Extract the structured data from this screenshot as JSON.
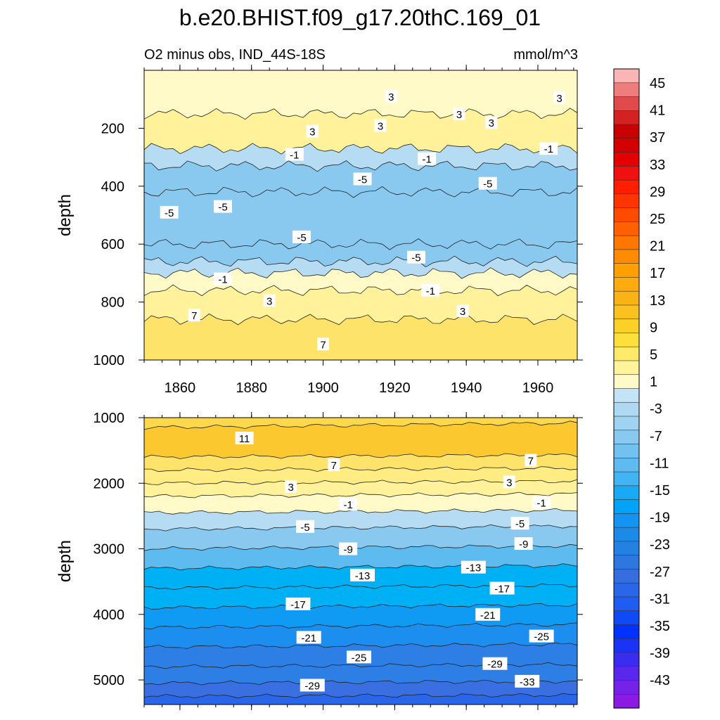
{
  "figure": {
    "title": "b.e20.BHIST.f09_g17.20thC.169_01",
    "subtitle_left": "O2 minus obs, IND_44S-18S",
    "subtitle_right": "mmol/m^3"
  },
  "chart_data": [
    {
      "type": "heatmap",
      "panel": "upper",
      "title": "O2 minus obs, IND_44S-18S",
      "units": "mmol/m^3",
      "xlabel": "",
      "ylabel": "depth",
      "xlim": [
        1850,
        1971
      ],
      "ylim": [
        1000,
        0
      ],
      "xticks": [
        1860,
        1880,
        1900,
        1920,
        1940,
        1960
      ],
      "yticks": [
        200,
        400,
        600,
        800,
        1000
      ],
      "bands": [
        {
          "top": 0,
          "bottom": 150,
          "value": 2
        },
        {
          "top": 150,
          "bottom": 270,
          "value": 3
        },
        {
          "top": 270,
          "bottom": 330,
          "value": -2
        },
        {
          "top": 330,
          "bottom": 420,
          "value": -4
        },
        {
          "top": 420,
          "bottom": 600,
          "value": -5
        },
        {
          "top": 600,
          "bottom": 660,
          "value": -4
        },
        {
          "top": 660,
          "bottom": 700,
          "value": -2
        },
        {
          "top": 700,
          "bottom": 760,
          "value": 1
        },
        {
          "top": 760,
          "bottom": 860,
          "value": 4
        },
        {
          "top": 860,
          "bottom": 1000,
          "value": 8
        }
      ],
      "contour_labels": [
        {
          "text": "3",
          "x": 1919,
          "y": 90
        },
        {
          "text": "3",
          "x": 1938,
          "y": 150
        },
        {
          "text": "3",
          "x": 1966,
          "y": 95
        },
        {
          "text": "3",
          "x": 1947,
          "y": 180
        },
        {
          "text": "3",
          "x": 1916,
          "y": 190
        },
        {
          "text": "3",
          "x": 1897,
          "y": 210
        },
        {
          "text": "-1",
          "x": 1892,
          "y": 290
        },
        {
          "text": "-1",
          "x": 1929,
          "y": 305
        },
        {
          "text": "-1",
          "x": 1963,
          "y": 270
        },
        {
          "text": "-5",
          "x": 1911,
          "y": 375
        },
        {
          "text": "-5",
          "x": 1946,
          "y": 390
        },
        {
          "text": "-5",
          "x": 1857,
          "y": 490
        },
        {
          "text": "-5",
          "x": 1872,
          "y": 470
        },
        {
          "text": "-5",
          "x": 1894,
          "y": 575
        },
        {
          "text": "-5",
          "x": 1926,
          "y": 645
        },
        {
          "text": "-1",
          "x": 1872,
          "y": 720
        },
        {
          "text": "-1",
          "x": 1930,
          "y": 760
        },
        {
          "text": "3",
          "x": 1885,
          "y": 795
        },
        {
          "text": "3",
          "x": 1939,
          "y": 830
        },
        {
          "text": "7",
          "x": 1864,
          "y": 845
        },
        {
          "text": "7",
          "x": 1900,
          "y": 945
        }
      ]
    },
    {
      "type": "heatmap",
      "panel": "lower",
      "xlabel": "",
      "ylabel": "depth",
      "xlim": [
        1850,
        1971
      ],
      "ylim": [
        5375,
        1000
      ],
      "yticks": [
        1000,
        2000,
        3000,
        4000,
        5000
      ],
      "bands": [
        {
          "top": 1000,
          "bottom": 1150,
          "value": 9
        },
        {
          "top": 1150,
          "bottom": 1600,
          "value": 11
        },
        {
          "top": 1600,
          "bottom": 1800,
          "value": 8
        },
        {
          "top": 1800,
          "bottom": 2000,
          "value": 5
        },
        {
          "top": 2000,
          "bottom": 2200,
          "value": 3
        },
        {
          "top": 2200,
          "bottom": 2450,
          "value": 1
        },
        {
          "top": 2450,
          "bottom": 2700,
          "value": -3
        },
        {
          "top": 2700,
          "bottom": 3000,
          "value": -6
        },
        {
          "top": 3000,
          "bottom": 3300,
          "value": -9
        },
        {
          "top": 3300,
          "bottom": 3600,
          "value": -12
        },
        {
          "top": 3600,
          "bottom": 3900,
          "value": -15
        },
        {
          "top": 3900,
          "bottom": 4200,
          "value": -18
        },
        {
          "top": 4200,
          "bottom": 4500,
          "value": -21
        },
        {
          "top": 4500,
          "bottom": 4800,
          "value": -24
        },
        {
          "top": 4800,
          "bottom": 5050,
          "value": -27
        },
        {
          "top": 5050,
          "bottom": 5250,
          "value": -30
        },
        {
          "top": 5250,
          "bottom": 5375,
          "value": -34
        }
      ],
      "contour_labels": [
        {
          "text": "11",
          "x": 1878,
          "y": 1310
        },
        {
          "text": "7",
          "x": 1903,
          "y": 1720
        },
        {
          "text": "7",
          "x": 1958,
          "y": 1650
        },
        {
          "text": "3",
          "x": 1891,
          "y": 2050
        },
        {
          "text": "3",
          "x": 1952,
          "y": 1980
        },
        {
          "text": "-1",
          "x": 1907,
          "y": 2320
        },
        {
          "text": "-1",
          "x": 1961,
          "y": 2290
        },
        {
          "text": "-5",
          "x": 1895,
          "y": 2660
        },
        {
          "text": "-5",
          "x": 1955,
          "y": 2610
        },
        {
          "text": "-9",
          "x": 1907,
          "y": 3000
        },
        {
          "text": "-9",
          "x": 1956,
          "y": 2920
        },
        {
          "text": "-13",
          "x": 1911,
          "y": 3400
        },
        {
          "text": "-13",
          "x": 1942,
          "y": 3280
        },
        {
          "text": "-17",
          "x": 1893,
          "y": 3840
        },
        {
          "text": "-17",
          "x": 1950,
          "y": 3600
        },
        {
          "text": "-21",
          "x": 1896,
          "y": 4350
        },
        {
          "text": "-21",
          "x": 1946,
          "y": 4000
        },
        {
          "text": "-25",
          "x": 1910,
          "y": 4650
        },
        {
          "text": "-25",
          "x": 1961,
          "y": 4330
        },
        {
          "text": "-29",
          "x": 1897,
          "y": 5080
        },
        {
          "text": "-29",
          "x": 1948,
          "y": 4750
        },
        {
          "text": "-33",
          "x": 1957,
          "y": 5020
        }
      ]
    }
  ],
  "colorbar": {
    "labels": [
      "45",
      "41",
      "37",
      "33",
      "29",
      "25",
      "21",
      "17",
      "13",
      "9",
      "5",
      "1",
      "-3",
      "-7",
      "-11",
      "-15",
      "-19",
      "-23",
      "-27",
      "-31",
      "-35",
      "-39",
      "-43"
    ],
    "colors": [
      "#fbb5b5",
      "#ee7e7e",
      "#e04a4a",
      "#d42121",
      "#c80000",
      "#d40000",
      "#e40000",
      "#f01010",
      "#ff1f00",
      "#ff3500",
      "#ff4b00",
      "#ff6000",
      "#ff7600",
      "#ff8b00",
      "#ffa000",
      "#ffab10",
      "#f9b315",
      "#fac21e",
      "#fbd127",
      "#fde03c",
      "#ffea6a",
      "#fff49a",
      "#fffac8",
      "#c5e3f6",
      "#afd9f2",
      "#9fd3f1",
      "#89c8ef",
      "#73c1ee",
      "#5ebbf0",
      "#42b4f3",
      "#18aaf5",
      "#00a3f7",
      "#1394f2",
      "#1c8ae8",
      "#2381e3",
      "#2d77de",
      "#366ee0",
      "#2a66ea",
      "#1f5cf0",
      "#0f4bf5",
      "#0032ff",
      "#1a33f5",
      "#3a2df0",
      "#5a28ec",
      "#7522e8",
      "#8a1ae4"
    ]
  }
}
